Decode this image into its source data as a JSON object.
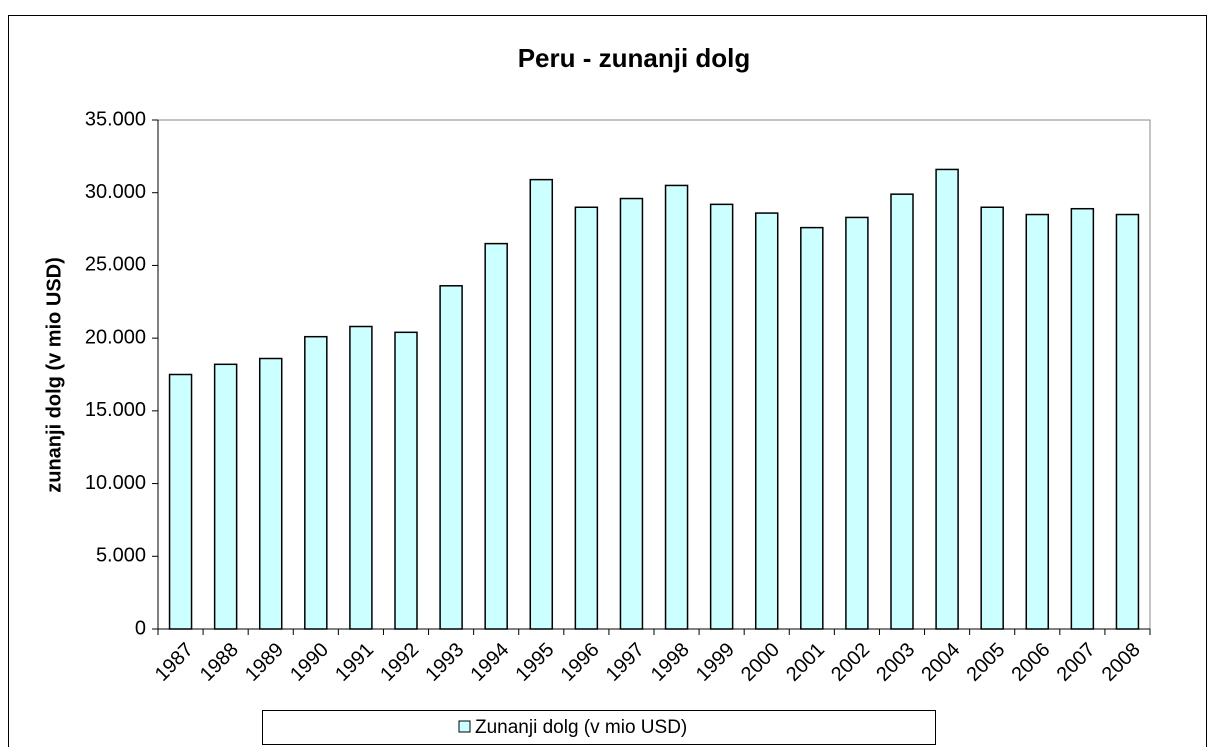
{
  "chart_data": {
    "type": "bar",
    "title": "Peru - zunanji dolg",
    "y_label": "zunanji dolg (v mio USD)",
    "categories": [
      "1987",
      "1988",
      "1989",
      "1990",
      "1991",
      "1992",
      "1993",
      "1994",
      "1995",
      "1996",
      "1997",
      "1998",
      "1999",
      "2000",
      "2001",
      "2002",
      "2003",
      "2004",
      "2005",
      "2006",
      "2007",
      "2008"
    ],
    "series": [
      {
        "name": "Zunanji dolg (v mio USD)",
        "color": "#ccffff",
        "values": [
          17500,
          18200,
          18600,
          20100,
          20800,
          20400,
          23600,
          26500,
          30900,
          29000,
          29600,
          30500,
          29200,
          28600,
          27600,
          28300,
          29900,
          31600,
          29000,
          28500,
          28900,
          28500
        ]
      }
    ],
    "ylim": [
      0,
      35000
    ],
    "yticks": [
      0,
      {
        "value": 5000,
        "label": "5.000"
      },
      {
        "value": 10000,
        "label": "10.000"
      },
      {
        "value": 15000,
        "label": "15.000"
      },
      {
        "value": 20000,
        "label": "20.000"
      },
      {
        "value": 25000,
        "label": "25.000"
      },
      {
        "value": 30000,
        "label": "30.000"
      },
      {
        "value": 35000,
        "label": "35.000"
      }
    ],
    "legend": "bottom"
  }
}
